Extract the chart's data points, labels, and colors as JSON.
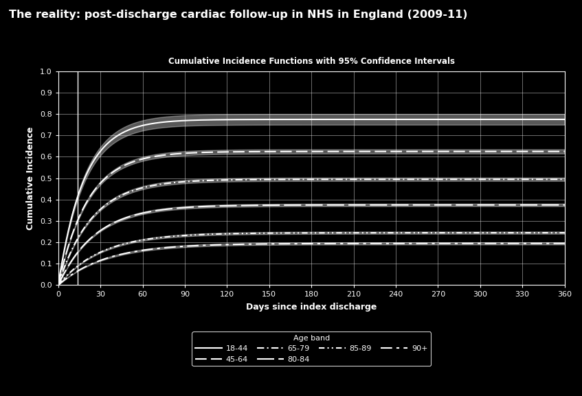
{
  "title_main": "The reality: post-discharge cardiac follow-up in NHS in England (2009-11)",
  "title_sub": "Cumulative Incidence Functions with 95% Confidence Intervals",
  "xlabel": "Days since index discharge",
  "ylabel": "Cumulative Incidence",
  "background_color": "#000000",
  "text_color": "#ffffff",
  "xlim": [
    0,
    360
  ],
  "ylim": [
    0.0,
    1.0
  ],
  "xticks": [
    0,
    30,
    60,
    90,
    120,
    150,
    180,
    210,
    240,
    270,
    300,
    330,
    360
  ],
  "yticks": [
    0.0,
    0.1,
    0.2,
    0.3,
    0.4,
    0.5,
    0.6,
    0.7,
    0.8,
    0.9,
    1.0
  ],
  "vline_x": 14,
  "age_bands": [
    "18-44",
    "45-64",
    "65-79",
    "80-84",
    "85-89",
    "90+"
  ],
  "curves": {
    "18-44": {
      "final": 0.775,
      "rate": 0.055,
      "ci_upper_add": 0.025,
      "ci_lower_sub": 0.025
    },
    "45-64": {
      "final": 0.625,
      "rate": 0.048,
      "ci_upper_add": 0.01,
      "ci_lower_sub": 0.01
    },
    "65-79": {
      "final": 0.495,
      "rate": 0.042,
      "ci_upper_add": 0.008,
      "ci_lower_sub": 0.008
    },
    "80-84": {
      "final": 0.375,
      "rate": 0.038,
      "ci_upper_add": 0.006,
      "ci_lower_sub": 0.006
    },
    "85-89": {
      "final": 0.245,
      "rate": 0.033,
      "ci_upper_add": 0.005,
      "ci_lower_sub": 0.005
    },
    "90+": {
      "final": 0.195,
      "rate": 0.03,
      "ci_upper_add": 0.005,
      "ci_lower_sub": 0.005
    }
  }
}
